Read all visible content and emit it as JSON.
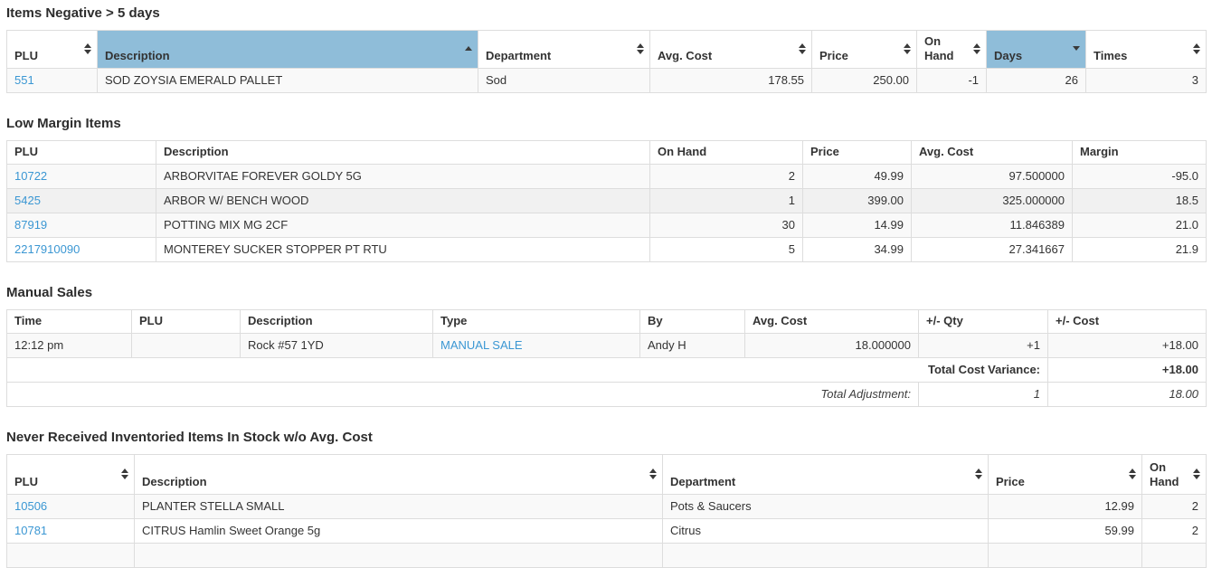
{
  "colors": {
    "sorted_header_bg": "#8fbdd9",
    "link_blue": "#3b97d3",
    "row_stripe": "#f9f9f9",
    "row_hover": "#f1f1f1",
    "border": "#dddddd",
    "text": "#333333"
  },
  "icons": {
    "sort_both": "up-down triangles",
    "sort_asc": "up triangle",
    "sort_desc": "down triangle"
  },
  "tables": [
    {
      "title": "Items Negative > 5 days",
      "sortable": true,
      "columns": [
        {
          "label": "PLU",
          "sort": "both",
          "align": "l"
        },
        {
          "label": "Description",
          "sort": "asc",
          "sorted": true,
          "align": "l"
        },
        {
          "label": "Department",
          "sort": "both",
          "align": "l"
        },
        {
          "label": "Avg. Cost",
          "sort": "both",
          "align": "r"
        },
        {
          "label": "Price",
          "sort": "both",
          "align": "r"
        },
        {
          "label": "On Hand",
          "sort": "both",
          "align": "r"
        },
        {
          "label": "Days",
          "sort": "desc",
          "sorted": true,
          "align": "r"
        },
        {
          "label": "Times",
          "sort": "both",
          "align": "r"
        }
      ],
      "rows": [
        {
          "cells": [
            {
              "t": "551",
              "link": true,
              "n": "plu-link"
            },
            {
              "t": "SOD ZOYSIA EMERALD PALLET"
            },
            {
              "t": "Sod"
            },
            {
              "t": "178.55"
            },
            {
              "t": "250.00"
            },
            {
              "t": "-1"
            },
            {
              "t": "26"
            },
            {
              "t": "3"
            }
          ]
        }
      ]
    },
    {
      "title": "Low Margin Items",
      "sortable": false,
      "columns": [
        {
          "label": "PLU",
          "align": "l"
        },
        {
          "label": "Description",
          "align": "l"
        },
        {
          "label": "On Hand",
          "align": "r"
        },
        {
          "label": "Price",
          "align": "r"
        },
        {
          "label": "Avg. Cost",
          "align": "r"
        },
        {
          "label": "Margin",
          "align": "r"
        }
      ],
      "rows": [
        {
          "cells": [
            {
              "t": "10722",
              "link": true,
              "n": "plu-link"
            },
            {
              "t": "ARBORVITAE FOREVER GOLDY 5G"
            },
            {
              "t": "2"
            },
            {
              "t": "49.99"
            },
            {
              "t": "97.500000"
            },
            {
              "t": "-95.0"
            }
          ]
        },
        {
          "hovered": true,
          "cells": [
            {
              "t": "5425",
              "link": true,
              "n": "plu-link"
            },
            {
              "t": "ARBOR W/ BENCH WOOD"
            },
            {
              "t": "1"
            },
            {
              "t": "399.00"
            },
            {
              "t": "325.000000"
            },
            {
              "t": "18.5"
            }
          ]
        },
        {
          "cells": [
            {
              "t": "87919",
              "link": true,
              "n": "plu-link"
            },
            {
              "t": "POTTING MIX MG 2CF"
            },
            {
              "t": "30"
            },
            {
              "t": "14.99"
            },
            {
              "t": "11.846389"
            },
            {
              "t": "21.0"
            }
          ]
        },
        {
          "cells": [
            {
              "t": "2217910090",
              "link": true,
              "n": "plu-link"
            },
            {
              "t": "MONTEREY SUCKER STOPPER PT RTU"
            },
            {
              "t": "5"
            },
            {
              "t": "34.99"
            },
            {
              "t": "27.341667"
            },
            {
              "t": "21.9"
            }
          ]
        }
      ]
    },
    {
      "title": "Manual Sales",
      "sortable": false,
      "columns": [
        {
          "label": "Time",
          "align": "l"
        },
        {
          "label": "PLU",
          "align": "l"
        },
        {
          "label": "Description",
          "align": "l"
        },
        {
          "label": "Type",
          "align": "l"
        },
        {
          "label": "By",
          "align": "l"
        },
        {
          "label": "Avg. Cost",
          "align": "r"
        },
        {
          "label": "+/- Qty",
          "align": "r"
        },
        {
          "label": "+/- Cost",
          "align": "r"
        }
      ],
      "rows": [
        {
          "cells": [
            {
              "t": "12:12 pm"
            },
            {
              "t": ""
            },
            {
              "t": "Rock #57 1YD"
            },
            {
              "t": "MANUAL SALE",
              "link": true,
              "n": "type-link"
            },
            {
              "t": "Andy H"
            },
            {
              "t": "18.000000"
            },
            {
              "t": "+1"
            },
            {
              "t": "+18.00"
            }
          ]
        },
        {
          "total": true,
          "cells": [
            {
              "t": "Total Cost Variance:",
              "cs": 7,
              "al": "r",
              "b": true,
              "n": "total-cost-variance-label"
            },
            {
              "t": "+18.00",
              "al": "r",
              "b": true,
              "n": "total-cost-variance-value"
            }
          ]
        },
        {
          "total": true,
          "cells": [
            {
              "t": "Total Adjustment:",
              "cs": 6,
              "al": "r",
              "i": true,
              "n": "total-adjustment-label"
            },
            {
              "t": "1",
              "al": "r",
              "i": true,
              "n": "total-adjustment-qty"
            },
            {
              "t": "18.00",
              "al": "r",
              "i": true,
              "n": "total-adjustment-cost"
            }
          ]
        }
      ]
    },
    {
      "title": "Never Received Inventoried Items In Stock w/o Avg. Cost",
      "sortable": true,
      "columns": [
        {
          "label": "PLU",
          "sort": "both",
          "align": "l"
        },
        {
          "label": "Description",
          "sort": "both",
          "align": "l"
        },
        {
          "label": "Department",
          "sort": "both",
          "align": "l"
        },
        {
          "label": "Price",
          "sort": "both",
          "align": "r"
        },
        {
          "label": "On Hand",
          "sort": "both",
          "align": "r"
        }
      ],
      "rows": [
        {
          "cells": [
            {
              "t": "10506",
              "link": true,
              "n": "plu-link"
            },
            {
              "t": "PLANTER STELLA SMALL"
            },
            {
              "t": "Pots & Saucers"
            },
            {
              "t": "12.99"
            },
            {
              "t": "2"
            }
          ]
        },
        {
          "cells": [
            {
              "t": "10781",
              "link": true,
              "n": "plu-link"
            },
            {
              "t": "CITRUS Hamlin Sweet Orange 5g"
            },
            {
              "t": "Citrus"
            },
            {
              "t": "59.99"
            },
            {
              "t": "2"
            }
          ]
        },
        {
          "cells": [
            {
              "t": ""
            },
            {
              "t": ""
            },
            {
              "t": ""
            },
            {
              "t": ""
            },
            {
              "t": ""
            }
          ]
        }
      ]
    }
  ]
}
